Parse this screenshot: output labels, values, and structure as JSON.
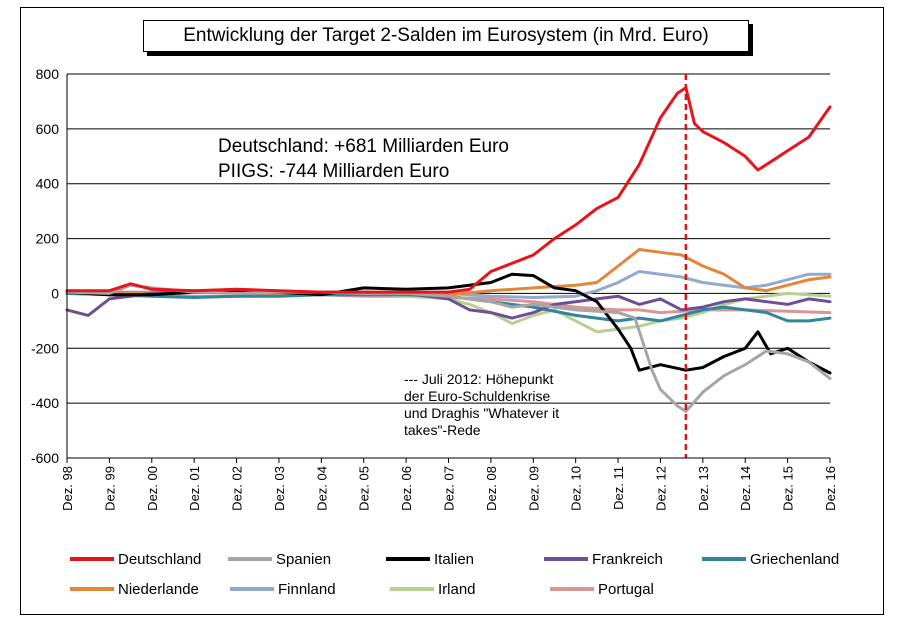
{
  "chart_data": {
    "type": "line",
    "title": "Entwicklung der Target 2-Salden im Eurosystem (in Mrd. Euro)",
    "ylim": [
      -600,
      800
    ],
    "yticks": [
      800,
      600,
      400,
      200,
      0,
      -200,
      -400,
      -600
    ],
    "xlim": [
      1998,
      2016
    ],
    "xticks": [
      "Dez. 98",
      "Dez. 99",
      "Dez. 00",
      "Dez. 01",
      "Dez. 02",
      "Dez. 03",
      "Dez. 04",
      "Dez. 05",
      "Dez. 06",
      "Dez. 07",
      "Dez. 08",
      "Dez. 09",
      "Dez. 10",
      "Dez. 11",
      "Dez. 12",
      "Dez. 13",
      "Dez. 14",
      "Dez. 15",
      "Dez. 16"
    ],
    "grid": true,
    "annotations": {
      "line1": "Deutschland: +681 Milliarden Euro",
      "line2": "PIIGS: -744 Milliarden Euro",
      "marker_x": 2012.6,
      "note": [
        "--- Juli 2012: Höhepunkt",
        "der Euro-Schuldenkrise",
        "und Draghis \"Whatever it",
        "takes\"-Rede"
      ]
    },
    "series": [
      {
        "name": "Deutschland",
        "color": "#e8141b",
        "width": 3,
        "x": [
          1998,
          1999,
          1999.5,
          2000,
          2001,
          2002,
          2003,
          2004,
          2005,
          2006,
          2007,
          2007.5,
          2008,
          2008.5,
          2009,
          2009.5,
          2010,
          2010.5,
          2011,
          2011.5,
          2012,
          2012.4,
          2012.6,
          2012.8,
          2013,
          2013.5,
          2014,
          2014.3,
          2014.6,
          2015,
          2015.5,
          2016
        ],
        "values": [
          10,
          10,
          35,
          15,
          10,
          15,
          10,
          5,
          5,
          5,
          5,
          15,
          80,
          110,
          140,
          200,
          250,
          310,
          350,
          470,
          640,
          730,
          750,
          620,
          590,
          550,
          500,
          450,
          480,
          520,
          570,
          680
        ]
      },
      {
        "name": "Spanien",
        "color": "#a6a6a6",
        "width": 3,
        "x": [
          1998,
          1999,
          1999.5,
          2000,
          2001,
          2002,
          2003,
          2004,
          2005,
          2006,
          2007,
          2008,
          2008.5,
          2009,
          2010,
          2011,
          2011.4,
          2011.8,
          2012,
          2012.4,
          2012.6,
          2013,
          2013.5,
          2014,
          2014.5,
          2015,
          2015.5,
          2016
        ],
        "values": [
          5,
          0,
          30,
          20,
          5,
          0,
          5,
          5,
          0,
          0,
          -10,
          -30,
          -50,
          -40,
          -60,
          -70,
          -90,
          -280,
          -350,
          -410,
          -430,
          -360,
          -300,
          -260,
          -210,
          -220,
          -250,
          -310
        ]
      },
      {
        "name": "Italien",
        "color": "#000000",
        "width": 3,
        "x": [
          1998,
          1999,
          2000,
          2001,
          2002,
          2003,
          2004,
          2005,
          2006,
          2007,
          2008,
          2008.5,
          2009,
          2009.5,
          2010,
          2010.5,
          2011,
          2011.3,
          2011.5,
          2012,
          2012.6,
          2013,
          2013.5,
          2014,
          2014.3,
          2014.6,
          2015,
          2015.5,
          2016
        ],
        "values": [
          5,
          -5,
          -5,
          5,
          5,
          5,
          -5,
          20,
          15,
          20,
          40,
          70,
          65,
          20,
          10,
          -30,
          -130,
          -200,
          -280,
          -260,
          -280,
          -270,
          -230,
          -200,
          -140,
          -220,
          -200,
          -250,
          -290
        ]
      },
      {
        "name": "Frankreich",
        "color": "#6e4f95",
        "width": 3,
        "x": [
          1998,
          1998.5,
          1999,
          1999.5,
          2000,
          2001,
          2002,
          2003,
          2004,
          2005,
          2006,
          2007,
          2007.5,
          2008,
          2008.5,
          2009,
          2009.5,
          2010,
          2010.5,
          2011,
          2011.5,
          2012,
          2012.5,
          2013,
          2013.5,
          2014,
          2014.5,
          2015,
          2015.5,
          2016
        ],
        "values": [
          -60,
          -80,
          -20,
          -10,
          0,
          10,
          5,
          5,
          5,
          5,
          0,
          -20,
          -60,
          -70,
          -90,
          -70,
          -40,
          -30,
          -20,
          -10,
          -40,
          -20,
          -60,
          -50,
          -30,
          -20,
          -30,
          -40,
          -20,
          -30
        ]
      },
      {
        "name": "Griechenland",
        "color": "#31859c",
        "width": 3,
        "x": [
          1998,
          1999,
          2000,
          2001,
          2002,
          2003,
          2004,
          2005,
          2006,
          2007,
          2008,
          2009,
          2010,
          2010.5,
          2011,
          2011.5,
          2012,
          2012.5,
          2013,
          2013.5,
          2014,
          2014.5,
          2015,
          2015.5,
          2016
        ],
        "values": [
          0,
          -5,
          -10,
          -15,
          -10,
          -10,
          -5,
          -5,
          -5,
          -10,
          -30,
          -50,
          -80,
          -90,
          -100,
          -90,
          -100,
          -80,
          -60,
          -50,
          -60,
          -70,
          -100,
          -100,
          -90
        ]
      },
      {
        "name": "Niederlande",
        "color": "#e2873a",
        "width": 3,
        "x": [
          1998,
          1999,
          2000,
          2001,
          2002,
          2003,
          2004,
          2005,
          2006,
          2007,
          2008,
          2009,
          2010,
          2010.5,
          2011,
          2011.5,
          2012,
          2012.5,
          2013,
          2013.5,
          2014,
          2014.5,
          2015,
          2015.5,
          2016
        ],
        "values": [
          10,
          5,
          0,
          5,
          5,
          0,
          5,
          0,
          -5,
          -5,
          10,
          20,
          30,
          40,
          100,
          160,
          150,
          140,
          100,
          70,
          20,
          10,
          30,
          50,
          60
        ]
      },
      {
        "name": "Finnland",
        "color": "#92a9d0",
        "width": 3,
        "x": [
          1998,
          1999,
          2000,
          2001,
          2002,
          2003,
          2004,
          2005,
          2006,
          2007,
          2008,
          2009,
          2010,
          2010.5,
          2011,
          2011.5,
          2012,
          2012.5,
          2013,
          2013.5,
          2014,
          2014.5,
          2015,
          2015.5,
          2016
        ],
        "values": [
          0,
          5,
          5,
          5,
          5,
          5,
          5,
          5,
          0,
          0,
          -10,
          -15,
          -10,
          10,
          40,
          80,
          70,
          60,
          40,
          30,
          20,
          30,
          50,
          70,
          70
        ]
      },
      {
        "name": "Irland",
        "color": "#b8cf92",
        "width": 3,
        "x": [
          1998,
          1999,
          2000,
          2001,
          2002,
          2003,
          2004,
          2005,
          2006,
          2007,
          2007.5,
          2008,
          2008.5,
          2009,
          2009.5,
          2010,
          2010.5,
          2011,
          2011.5,
          2012,
          2012.5,
          2013,
          2013.5,
          2014,
          2014.5,
          2015,
          2015.5,
          2016
        ],
        "values": [
          0,
          5,
          5,
          5,
          5,
          0,
          0,
          0,
          -10,
          -20,
          -40,
          -70,
          -110,
          -80,
          -60,
          -100,
          -140,
          -130,
          -120,
          -100,
          -90,
          -70,
          -40,
          -20,
          -10,
          0,
          -5,
          -10
        ]
      },
      {
        "name": "Portugal",
        "color": "#d99694",
        "width": 3,
        "x": [
          1998,
          1999,
          2000,
          2001,
          2002,
          2003,
          2004,
          2005,
          2006,
          2007,
          2008,
          2009,
          2010,
          2011,
          2011.5,
          2012,
          2012.5,
          2013,
          2014,
          2015,
          2016
        ],
        "values": [
          0,
          -5,
          -5,
          -10,
          -10,
          -5,
          -5,
          -10,
          -10,
          -15,
          -20,
          -30,
          -50,
          -60,
          -60,
          -70,
          -65,
          -60,
          -60,
          -65,
          -70
        ]
      }
    ]
  }
}
